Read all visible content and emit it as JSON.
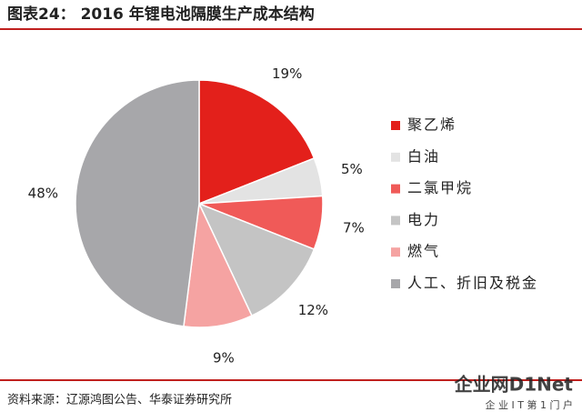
{
  "chart_data": {
    "type": "pie",
    "title": "图表24：  2016 年锂电池隔膜生产成本结构",
    "categories": [
      "聚乙烯",
      "白油",
      "二氯甲烷",
      "电力",
      "燃气",
      "人工、折旧及税金"
    ],
    "values": [
      19,
      5,
      7,
      12,
      9,
      48
    ],
    "value_labels": [
      "19%",
      "5%",
      "7%",
      "12%",
      "9%",
      "48%"
    ],
    "colors": [
      "#e3201b",
      "#e3e3e3",
      "#f05a58",
      "#c4c4c4",
      "#f5a3a2",
      "#a7a7aa"
    ],
    "legend": "right",
    "source": "资料来源：辽源鸿图公告、华泰证券研究所"
  },
  "watermark": {
    "logo": "企业网D1Net",
    "tagline": "企 业 I T 第 1 门 户"
  }
}
